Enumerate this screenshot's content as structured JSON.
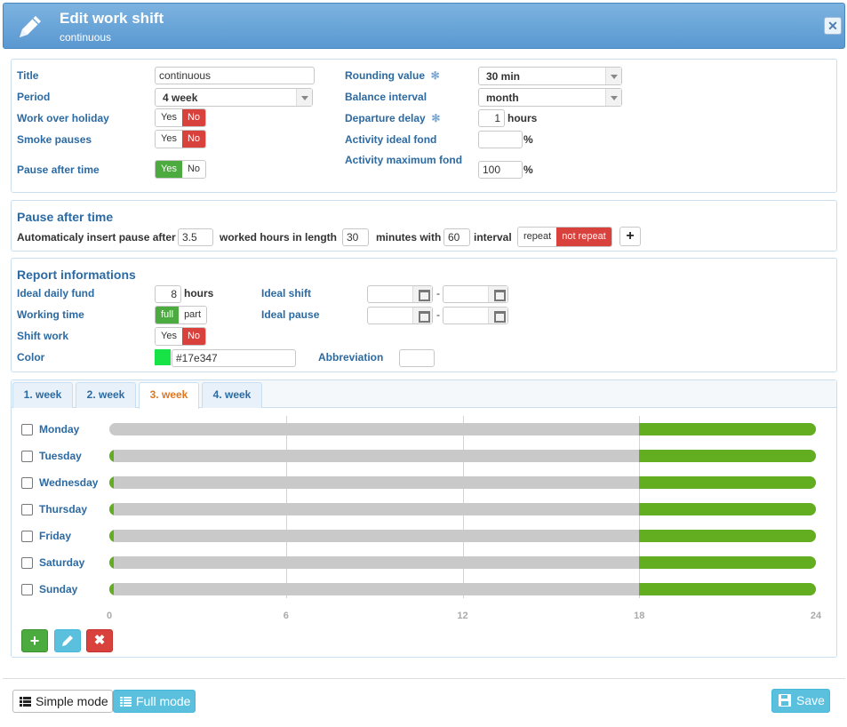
{
  "header": {
    "title": "Edit work shift",
    "subtitle": "continuous",
    "close_icon": "close-icon"
  },
  "general": {
    "title_label": "Title",
    "title_value": "continuous",
    "period_label": "Period",
    "period_value": "4 week",
    "holiday_label": "Work over holiday",
    "holiday_yes": "Yes",
    "holiday_no": "No",
    "smoke_label": "Smoke pauses",
    "smoke_yes": "Yes",
    "smoke_no": "No",
    "pause_label": "Pause after time",
    "pause_yes": "Yes",
    "pause_no": "No",
    "rounding_label": "Rounding value",
    "rounding_value": "30 min",
    "balance_label": "Balance interval",
    "balance_value": "month",
    "departure_label": "Departure delay",
    "departure_value": "1",
    "departure_unit": "hours",
    "ideal_fond_label": "Activity ideal fond",
    "ideal_fond_value": "",
    "ideal_fond_unit": "%",
    "max_fond_label": "Activity maximum fond",
    "max_fond_value": "100",
    "max_fond_unit": "%"
  },
  "pause_panel": {
    "heading": "Pause after time",
    "text1": "Automaticaly insert pause after",
    "after_value": "3.5",
    "text2": "worked hours in length",
    "length_value": "30",
    "text3": "minutes with",
    "with_value": "60",
    "text4": "interval",
    "repeat": "repeat",
    "not_repeat": "not repeat"
  },
  "report": {
    "heading": "Report informations",
    "daily_label": "Ideal daily fund",
    "daily_value": "8",
    "daily_unit": "hours",
    "working_label": "Working time",
    "working_full": "full",
    "working_part": "part",
    "shift_label": "Shift work",
    "shift_yes": "Yes",
    "shift_no": "No",
    "color_label": "Color",
    "color_value": "#17e347",
    "ideal_shift_label": "Ideal shift",
    "ideal_pause_label": "Ideal pause",
    "dash": "-",
    "abbrev_label": "Abbreviation",
    "abbrev_value": ""
  },
  "tabs": [
    "1. week",
    "2. week",
    "3. week",
    "4. week"
  ],
  "active_tab": "3. week",
  "chart_data": {
    "type": "bar",
    "axis_min": 0,
    "axis_max": 24,
    "ticks": [
      "0",
      "6",
      "12",
      "18",
      "24"
    ],
    "days": [
      {
        "name": "Monday",
        "segments": [
          {
            "start": 18,
            "end": 24
          }
        ]
      },
      {
        "name": "Tuesday",
        "segments": [
          {
            "start": 0,
            "end": 0.15
          },
          {
            "start": 18,
            "end": 24
          }
        ]
      },
      {
        "name": "Wednesday",
        "segments": [
          {
            "start": 0,
            "end": 0.15
          },
          {
            "start": 18,
            "end": 24
          }
        ]
      },
      {
        "name": "Thursday",
        "segments": [
          {
            "start": 0,
            "end": 0.15
          },
          {
            "start": 18,
            "end": 24
          }
        ]
      },
      {
        "name": "Friday",
        "segments": [
          {
            "start": 0,
            "end": 0.15
          },
          {
            "start": 18,
            "end": 24
          }
        ]
      },
      {
        "name": "Saturday",
        "segments": [
          {
            "start": 0,
            "end": 0.15
          },
          {
            "start": 18,
            "end": 24
          }
        ]
      },
      {
        "name": "Sunday",
        "segments": [
          {
            "start": 0,
            "end": 0.15
          },
          {
            "start": 18,
            "end": 24
          }
        ]
      }
    ],
    "active_color": "#63ad20",
    "inactive_color": "#c9c9c9"
  },
  "actions": {
    "add": "+",
    "delete": "✖"
  },
  "footer": {
    "simple_mode": "Simple mode",
    "full_mode": "Full mode",
    "save": "Save"
  }
}
